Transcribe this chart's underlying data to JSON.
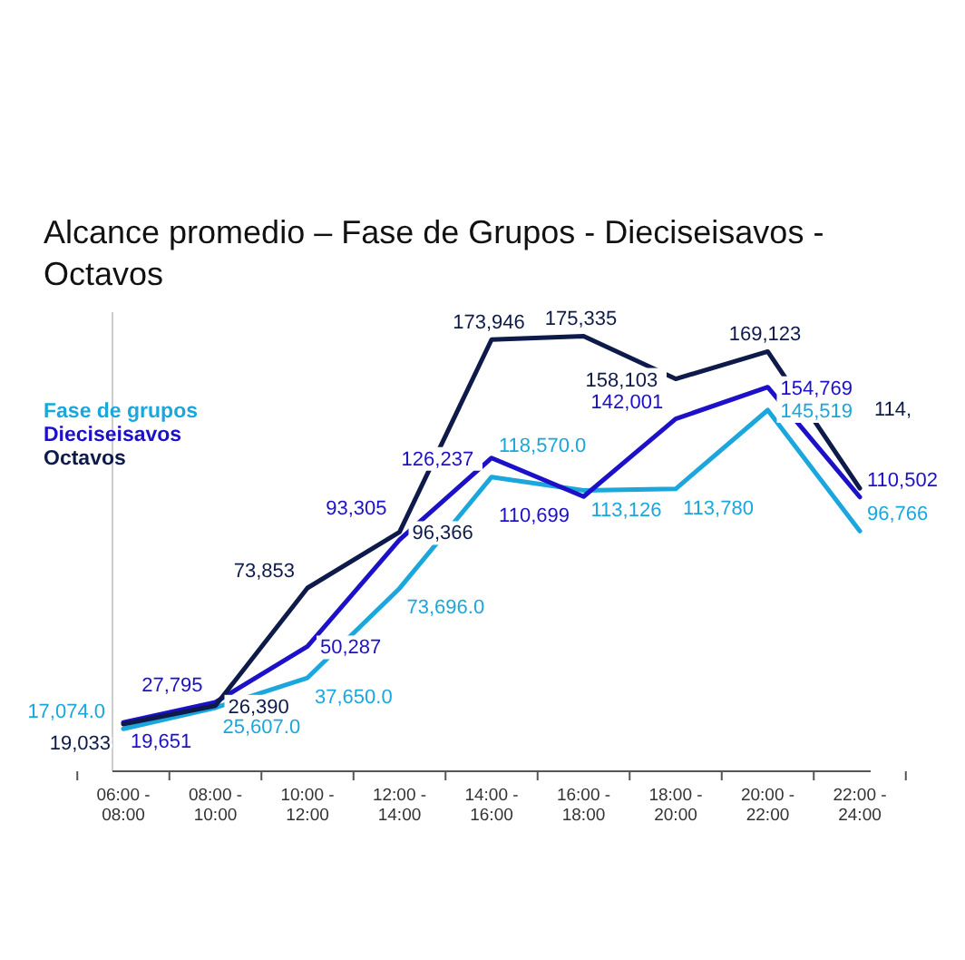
{
  "chart_data": {
    "type": "line",
    "title": "Alcance promedio – Fase de Grupos - Dieciseisavos - Octavos",
    "categories": [
      "06:00 - 08:00",
      "08:00 - 10:00",
      "10:00 - 12:00",
      "12:00 - 14:00",
      "14:00 - 16:00",
      "16:00 - 18:00",
      "18:00 - 20:00",
      "20:00 - 22:00",
      "22:00 - 24:00"
    ],
    "series": [
      {
        "name": "Fase de grupos",
        "color": "#1ba7dc",
        "values": [
          17074,
          25607,
          37650,
          73696,
          118570,
          113126,
          113780,
          145519,
          96766
        ],
        "value_labels": [
          "17,074.0",
          "25,607.0",
          "37,650.0",
          "73,696.0",
          "118,570.0",
          "113,126",
          "113,780",
          "145,519",
          "96,766"
        ]
      },
      {
        "name": "Dieciseisavos",
        "color": "#1c10c8",
        "values": [
          19651,
          27795,
          50287,
          93305,
          126237,
          110699,
          142001,
          154769,
          110502
        ],
        "value_labels": [
          "19,651",
          "27,795",
          "50,287",
          "93,305",
          "126,237",
          "110,699",
          "142,001",
          "154,769",
          "110,502"
        ]
      },
      {
        "name": "Octavos",
        "color": "#0e1a4a",
        "values": [
          19033,
          26390,
          73853,
          96366,
          173946,
          175335,
          158103,
          169123,
          114000
        ],
        "value_labels": [
          "19,033",
          "26,390",
          "73,853",
          "96,366",
          "173,946",
          "175,335",
          "158,103",
          "169,123",
          null
        ]
      }
    ],
    "annotations": [
      "114,"
    ],
    "ylim": [
      0,
      185000
    ],
    "legend": "top left",
    "marker": "none",
    "line_style": "solid"
  }
}
